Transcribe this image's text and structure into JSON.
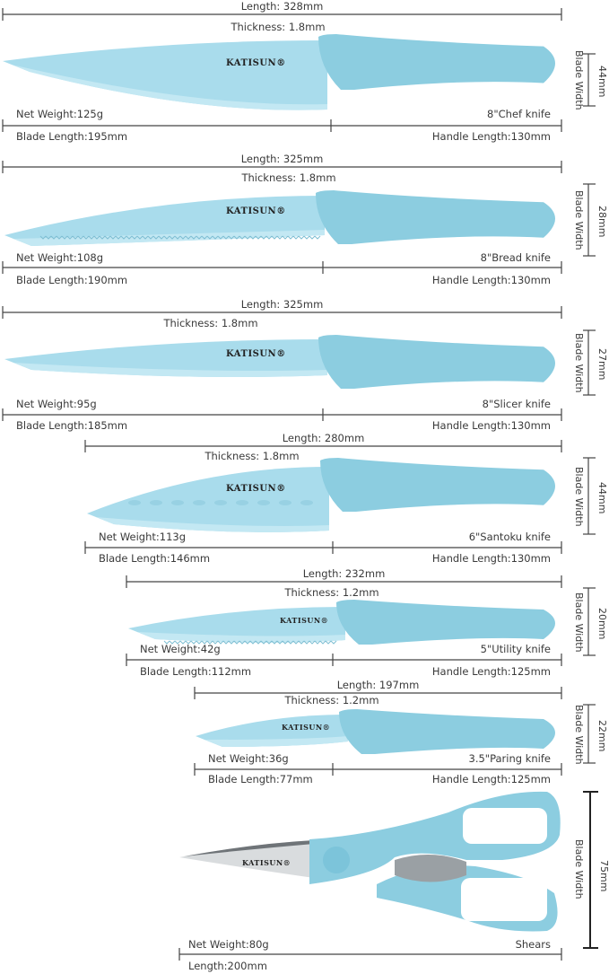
{
  "brand": "KATISUN®",
  "colors": {
    "blade": "#a9dcec",
    "handle": "#8ccde0",
    "steel": "#d9dcde",
    "line": "#444444"
  },
  "blade_width_label": "Blade Width",
  "items": [
    {
      "name": "8\"Chef knife",
      "length": "Length: 328mm",
      "thickness": "Thickness: 1.8mm",
      "weight": "Net Weight:125g",
      "blade_length": "Blade Length:195mm",
      "handle_length": "Handle Length:130mm",
      "blade_width": "44mm"
    },
    {
      "name": "8\"Bread knife",
      "length": "Length: 325mm",
      "thickness": "Thickness: 1.8mm",
      "weight": "Net Weight:108g",
      "blade_length": "Blade Length:190mm",
      "handle_length": "Handle Length:130mm",
      "blade_width": "28mm"
    },
    {
      "name": "8\"Slicer knife",
      "length": "Length: 325mm",
      "thickness": "Thickness: 1.8mm",
      "weight": "Net Weight:95g",
      "blade_length": "Blade Length:185mm",
      "handle_length": "Handle Length:130mm",
      "blade_width": "27mm"
    },
    {
      "name": "6\"Santoku knife",
      "length": "Length: 280mm",
      "thickness": "Thickness: 1.8mm",
      "weight": "Net Weight:113g",
      "blade_length": "Blade Length:146mm",
      "handle_length": "Handle Length:130mm",
      "blade_width": "44mm"
    },
    {
      "name": "5\"Utility knife",
      "length": "Length: 232mm",
      "thickness": "Thickness: 1.2mm",
      "weight": "Net Weight:42g",
      "blade_length": "Blade Length:112mm",
      "handle_length": "Handle Length:125mm",
      "blade_width": "20mm"
    },
    {
      "name": "3.5\"Paring knife",
      "length": "Length: 197mm",
      "thickness": "Thickness: 1.2mm",
      "weight": "Net Weight:36g",
      "blade_length": "Blade Length:77mm",
      "handle_length": "Handle Length:125mm",
      "blade_width": "22mm"
    },
    {
      "name": "Shears",
      "length": "Length:200mm",
      "weight": "Net Weight:80g",
      "blade_width": "75mm"
    }
  ]
}
